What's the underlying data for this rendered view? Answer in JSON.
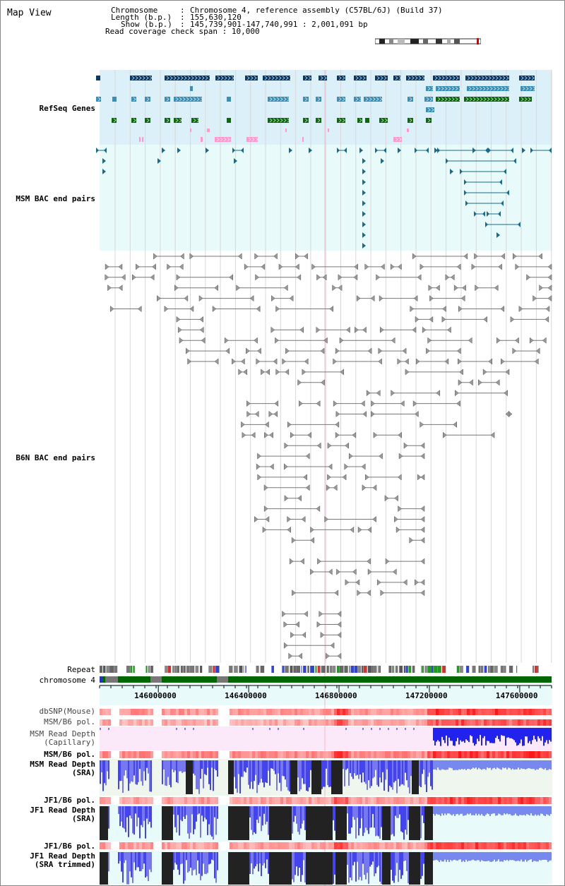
{
  "page": {
    "title": "Map View"
  },
  "info": {
    "chromosome_key": "Chromosome",
    "chromosome_val": "Chromosome 4, reference assembly (C57BL/6J) (Build 37)",
    "length_key": "Length (b.p.)",
    "length_val": "155,630,120",
    "show_key": "Show (b.p.)",
    "show_val": "145,739,901-147,740,991 : 2,001,091 bp",
    "span_key": "Read coverage check span",
    "span_val": "10,000"
  },
  "tracks": {
    "refseq": "RefSeq Genes",
    "msm_bac": "MSM BAC end pairs",
    "b6n_bac": "B6N BAC end pairs",
    "repeat": "Repeat",
    "chromosome": "chromosome 4",
    "dbsnp": "dbSNP(Mouse)",
    "msm_b6_pol_1": "MSM/B6 pol.",
    "msm_depth_cap_1": "MSM Read Depth",
    "msm_depth_cap_2": "(Capillary)",
    "msm_b6_pol_2": "MSM/B6 pol.",
    "msm_depth_sra_1": "MSM Read Depth",
    "msm_depth_sra_2": "(SRA)",
    "jf1_b6_pol_1": "JF1/B6 pol.",
    "jf1_depth_sra_1": "JF1 Read Depth",
    "jf1_depth_sra_2": "(SRA)",
    "jf1_b6_pol_2": "JF1/B6 pol.",
    "jf1_depth_trim_1": "JF1 Read Depth",
    "jf1_depth_trim_2": "(SRA trimmed)"
  },
  "axis": {
    "ticks": [
      {
        "value": 146000000,
        "label": "146000000"
      },
      {
        "value": 146400000,
        "label": "146400000"
      },
      {
        "value": 146800000,
        "label": "146800000"
      },
      {
        "value": 147200000,
        "label": "147200000"
      },
      {
        "value": 147600000,
        "label": "147600000"
      }
    ],
    "range": [
      145739901,
      147740991
    ]
  },
  "colors": {
    "refseq_label": "#0000aa",
    "msm_label": "#006688",
    "b6n_label": "#555555",
    "pol_label": "#dd8800",
    "depth_label": "#0000aa",
    "refseq_bg": "#dcf0fa",
    "msm_bg": "#e8fafa",
    "gene_dark": "#0a3a6a",
    "gene_mid": "#3a8fb8",
    "gene_green": "#0a6a0a",
    "gene_pink": "#ff99cc",
    "bac_msm": "#1a6a8a",
    "bac_b6n": "#777777",
    "chrom_green": "#006600",
    "depth_blue": "#2222ee",
    "depth_black": "#222222"
  }
}
